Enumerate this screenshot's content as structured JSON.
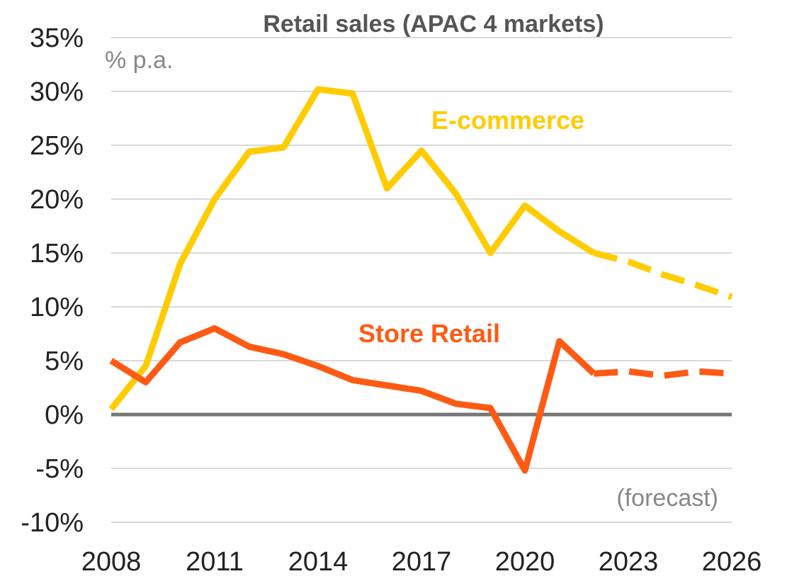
{
  "chart_data": {
    "type": "line",
    "title": "Retail sales (APAC 4 markets)",
    "unit_label": "% p.a.",
    "annotation": "(forecast)",
    "x": [
      2008,
      2009,
      2010,
      2011,
      2012,
      2013,
      2014,
      2015,
      2016,
      2017,
      2018,
      2019,
      2020,
      2021,
      2022,
      2023,
      2024,
      2025,
      2026
    ],
    "x_ticks": [
      "2008",
      "2011",
      "2014",
      "2017",
      "2020",
      "2023",
      "2026"
    ],
    "y_ticks": [
      "-10%",
      "-5%",
      "0%",
      "5%",
      "10%",
      "15%",
      "20%",
      "25%",
      "30%",
      "35%"
    ],
    "ylim": [
      -10,
      35
    ],
    "xlim": [
      2008,
      2026
    ],
    "forecast_from": 2022,
    "grid": true,
    "series": [
      {
        "name": "E-commerce",
        "color": "#ffcc00",
        "values": [
          0.5,
          4.5,
          14,
          20,
          24.4,
          24.8,
          30.2,
          29.8,
          21,
          24.5,
          20.5,
          15,
          19.4,
          17,
          15,
          14.2,
          13,
          12,
          10.9
        ]
      },
      {
        "name": "Store Retail",
        "color": "#ff5a14",
        "values": [
          5,
          3,
          6.7,
          8,
          6.3,
          5.6,
          4.5,
          3.2,
          2.7,
          2.2,
          1,
          0.6,
          -5.2,
          6.8,
          3.8,
          4,
          3.6,
          4,
          3.8
        ]
      }
    ]
  }
}
